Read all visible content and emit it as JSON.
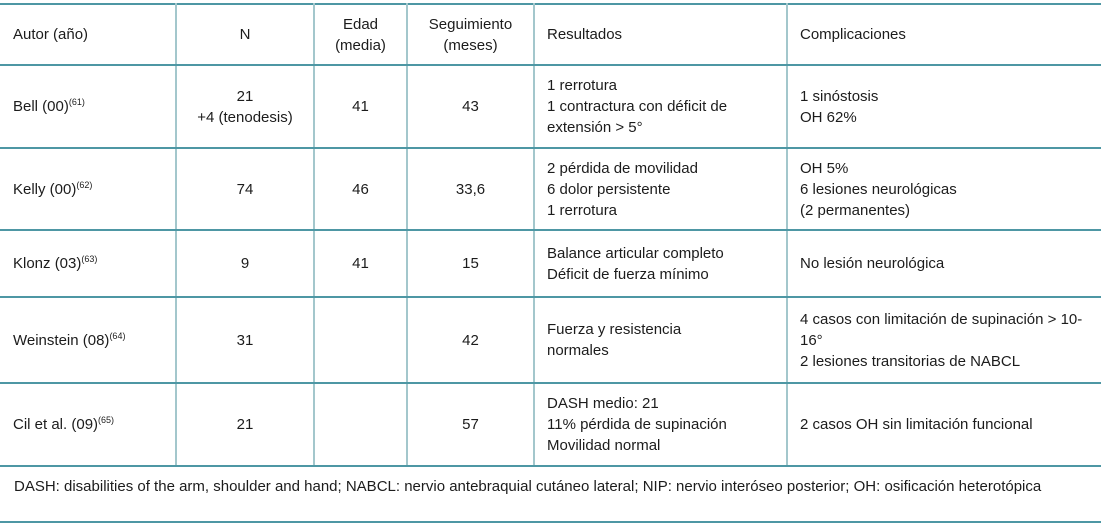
{
  "header": {
    "autor": "Autor (año)",
    "n": "N",
    "edad": [
      "Edad",
      "(media)"
    ],
    "seguimiento": [
      "Seguimiento",
      "(meses)"
    ],
    "resultados": "Resultados",
    "complicaciones": "Complicaciones"
  },
  "rows": [
    {
      "autor": "Bell (00)",
      "ref": "(61)",
      "n": [
        "21",
        "+4 (tenodesis)"
      ],
      "edad": "41",
      "seguimiento": "43",
      "resultados": [
        "1 rerrotura",
        "1 contractura con déficit de extensión > 5°"
      ],
      "complicaciones": [
        "1 sinóstosis",
        "OH 62%"
      ]
    },
    {
      "autor": "Kelly (00)",
      "ref": "(62)",
      "n": [
        "74"
      ],
      "edad": "46",
      "seguimiento": "33,6",
      "resultados": [
        "2 pérdida de movilidad",
        "6 dolor persistente",
        "1 rerrotura"
      ],
      "complicaciones": [
        "OH 5%",
        "6 lesiones neurológicas",
        "(2 permanentes)"
      ]
    },
    {
      "autor": "Klonz (03)",
      "ref": "(63)",
      "n": [
        "9"
      ],
      "edad": "41",
      "seguimiento": "15",
      "resultados": [
        "Balance articular completo",
        "Déficit de fuerza mínimo"
      ],
      "complicaciones": [
        "No lesión neurológica"
      ]
    },
    {
      "autor": "Weinstein (08)",
      "ref": "(64)",
      "n": [
        "31"
      ],
      "edad": "",
      "seguimiento": "42",
      "resultados": [
        "Fuerza y resistencia",
        "normales"
      ],
      "complicaciones": [
        "4 casos con limitación de supinación > 10-16°",
        "2 lesiones transitorias de NABCL"
      ]
    },
    {
      "autor": "Cil et al. (09)",
      "ref": "(65)",
      "n": [
        "21"
      ],
      "edad": "",
      "seguimiento": "57",
      "resultados": [
        "DASH medio: 21",
        "11% pérdida de supinación",
        "Movilidad normal"
      ],
      "complicaciones": [
        "2 casos OH sin limitación funcional"
      ]
    }
  ],
  "footnote": "DASH: disabilities of the arm, shoulder and hand; NABCL: nervio antebraquial cutáneo lateral; NIP: nervio interóseo posterior; OH: osificación heterotópica",
  "colors": {
    "horizontal_line": "#4e97a4",
    "vertical_line": "#a3c7cc",
    "text": "#1c1c1c"
  }
}
